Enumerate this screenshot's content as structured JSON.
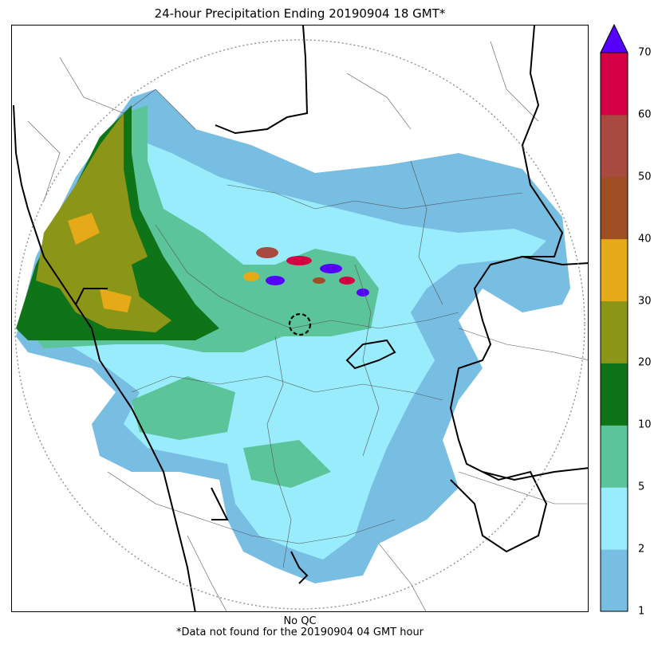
{
  "title": "24-hour Precipitation Ending 20190904 18 GMT*",
  "footer": {
    "qc_note": "No QC",
    "missing_note": "*Data not found for the 20190904 04 GMT hour"
  },
  "colorbar": {
    "levels": [
      1,
      2,
      5,
      10,
      20,
      30,
      40,
      50,
      60,
      70
    ],
    "tick_labels": [
      "1",
      "2",
      "5",
      "10",
      "20",
      "30",
      "40",
      "50",
      "60",
      "70"
    ],
    "colors": [
      "#78bde2",
      "#98ecfb",
      "#5bc49a",
      "#0f7418",
      "#8b9517",
      "#e6a918",
      "#9f4f24",
      "#a84a3f",
      "#d40044"
    ],
    "over_color": "#5500ff",
    "extend": "max"
  },
  "colors": {
    "border_state": "#000000",
    "border_district": "#555555",
    "range_ring": "#888888",
    "radar_site_marker": "#000000"
  }
}
